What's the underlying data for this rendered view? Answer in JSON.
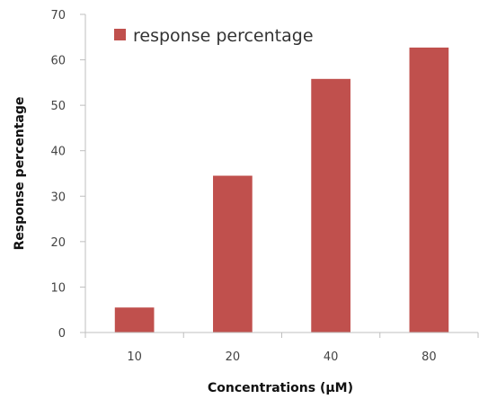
{
  "chart_data": {
    "type": "bar",
    "categories": [
      "10",
      "20",
      "40",
      "80"
    ],
    "series": [
      {
        "name": "response percentage",
        "values": [
          5.5,
          34.5,
          55.8,
          62.7
        ],
        "color": "#C0504D"
      }
    ],
    "xlabel": "Concentrations (µM)",
    "ylabel": "Response percentage",
    "ylim": [
      0,
      70
    ],
    "yticks": [
      0,
      10,
      20,
      30,
      40,
      50,
      60,
      70
    ],
    "grid": false,
    "legend": "top-left",
    "axis_color": "#bfbfbf"
  }
}
